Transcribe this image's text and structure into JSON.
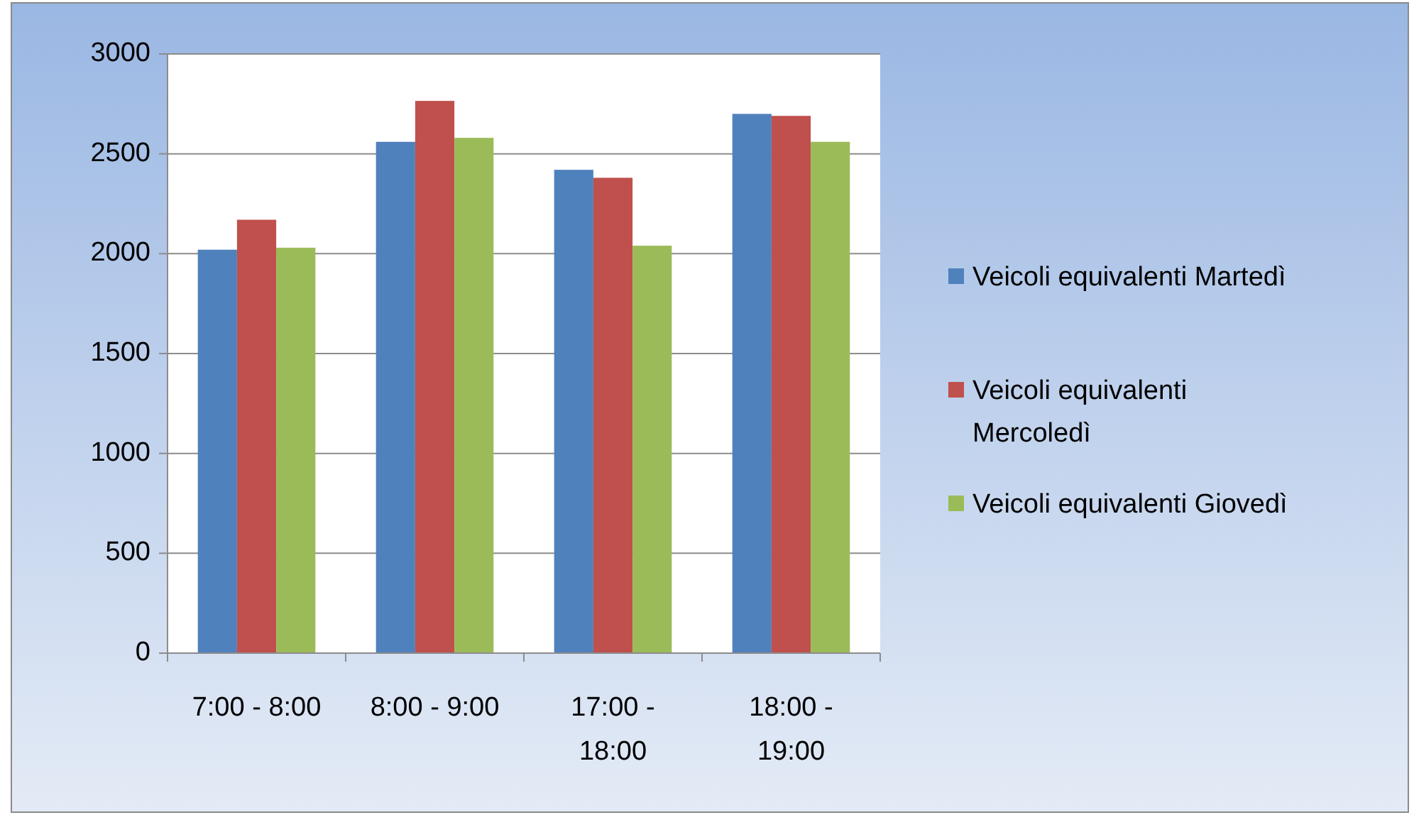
{
  "chart_data": {
    "type": "bar",
    "categories": [
      "7:00 - 8:00",
      "8:00 - 9:00",
      "17:00 - 18:00",
      "18:00 - 19:00"
    ],
    "series": [
      {
        "name": "Veicoli equivalenti Martedì",
        "color": "#4f81bd",
        "values": [
          2020,
          2560,
          2420,
          2700
        ]
      },
      {
        "name": "Veicoli equivalenti Mercoledì",
        "color": "#c0504d",
        "values": [
          2170,
          2765,
          2380,
          2690
        ]
      },
      {
        "name": "Veicoli equivalenti Giovedì",
        "color": "#9bbb59",
        "values": [
          2030,
          2580,
          2040,
          2560
        ]
      }
    ],
    "ylim": [
      0,
      3000
    ],
    "yticks": [
      0,
      500,
      1000,
      1500,
      2000,
      2500,
      3000
    ],
    "grid": "y",
    "legend": "right"
  }
}
